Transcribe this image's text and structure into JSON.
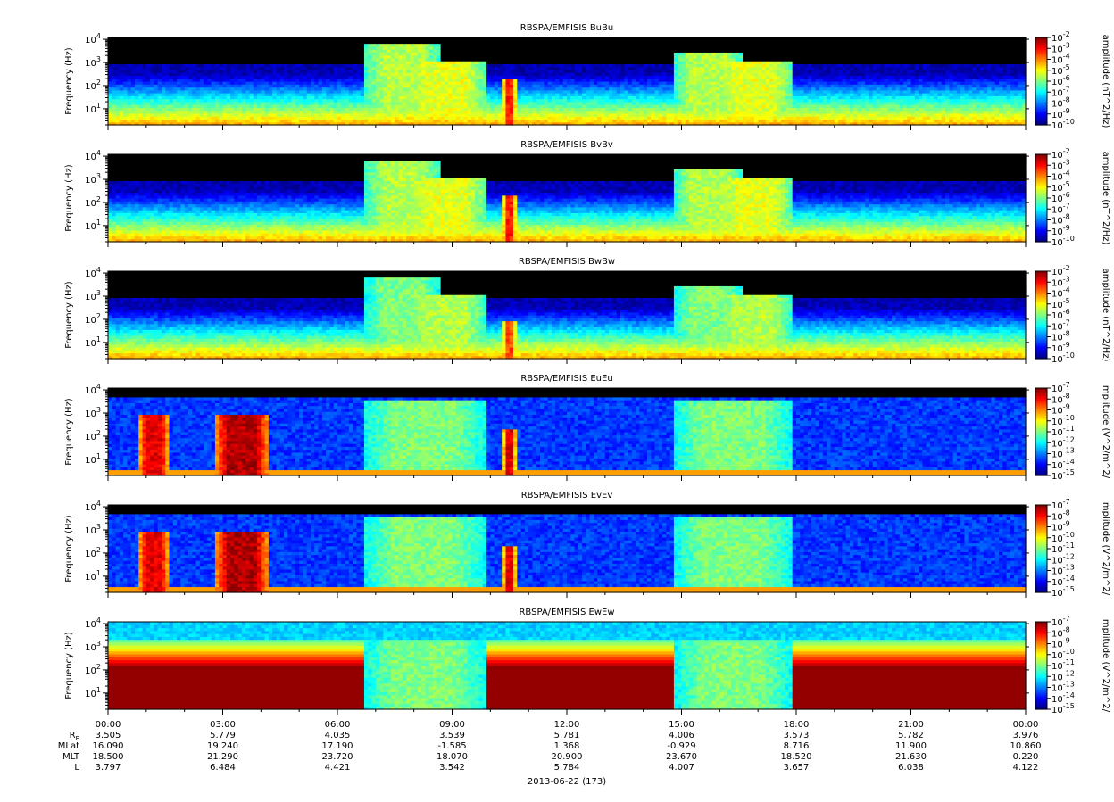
{
  "chart_data": [
    {
      "type": "heatmap",
      "title": "RBSPA/EMFISIS  BuBu",
      "ylabel": "Frequency (Hz)",
      "yscale": "log",
      "ylim": [
        2,
        12000
      ],
      "y_ticks": [
        "10^1",
        "10^2",
        "10^3",
        "10^4"
      ],
      "colorbar_label": "amplitude (nT^2/Hz)",
      "colorbar_scale": "log",
      "colorbar_range": [
        -10,
        -2
      ],
      "colorbar_ticks": [
        "10^-2",
        "10^-3",
        "10^-4",
        "10^-5",
        "10^-6",
        "10^-7",
        "10^-8",
        "10^-9",
        "10^-10"
      ],
      "profile": "b",
      "events": [
        {
          "start": 6.7,
          "end": 8.7,
          "fmax": 3.8,
          "level": 0.55
        },
        {
          "start": 7.8,
          "end": 9.9,
          "fmax": 3.1,
          "level": 0.6
        },
        {
          "start": 14.8,
          "end": 16.6,
          "fmax": 3.5,
          "level": 0.55
        },
        {
          "start": 15.9,
          "end": 17.9,
          "fmax": 3.1,
          "level": 0.6
        },
        {
          "start": 10.35,
          "end": 10.65,
          "fmax": 2.3,
          "level": 0.85
        }
      ]
    },
    {
      "type": "heatmap",
      "title": "RBSPA/EMFISIS  BvBv",
      "ylabel": "Frequency (Hz)",
      "yscale": "log",
      "ylim": [
        2,
        12000
      ],
      "y_ticks": [
        "10^1",
        "10^2",
        "10^3",
        "10^4"
      ],
      "colorbar_label": "amplitude (nT^2/Hz)",
      "colorbar_scale": "log",
      "colorbar_range": [
        -10,
        -2
      ],
      "colorbar_ticks": [
        "10^-2",
        "10^-3",
        "10^-4",
        "10^-5",
        "10^-6",
        "10^-7",
        "10^-8",
        "10^-9",
        "10^-10"
      ],
      "profile": "b",
      "events": [
        {
          "start": 6.7,
          "end": 8.7,
          "fmax": 3.8,
          "level": 0.55
        },
        {
          "start": 7.8,
          "end": 9.9,
          "fmax": 3.1,
          "level": 0.6
        },
        {
          "start": 14.8,
          "end": 16.6,
          "fmax": 3.5,
          "level": 0.55
        },
        {
          "start": 15.9,
          "end": 17.9,
          "fmax": 3.1,
          "level": 0.6
        },
        {
          "start": 10.35,
          "end": 10.65,
          "fmax": 2.3,
          "level": 0.85
        }
      ]
    },
    {
      "type": "heatmap",
      "title": "RBSPA/EMFISIS  BwBw",
      "ylabel": "Frequency (Hz)",
      "yscale": "log",
      "ylim": [
        2,
        12000
      ],
      "y_ticks": [
        "10^1",
        "10^2",
        "10^3",
        "10^4"
      ],
      "colorbar_label": "amplitude (nT^2/Hz)",
      "colorbar_scale": "log",
      "colorbar_range": [
        -10,
        -2
      ],
      "colorbar_ticks": [
        "10^-2",
        "10^-3",
        "10^-4",
        "10^-5",
        "10^-6",
        "10^-7",
        "10^-8",
        "10^-9",
        "10^-10"
      ],
      "profile": "b",
      "events": [
        {
          "start": 6.7,
          "end": 8.7,
          "fmax": 3.8,
          "level": 0.5
        },
        {
          "start": 7.8,
          "end": 9.9,
          "fmax": 3.1,
          "level": 0.55
        },
        {
          "start": 14.8,
          "end": 16.6,
          "fmax": 3.5,
          "level": 0.5
        },
        {
          "start": 15.9,
          "end": 17.9,
          "fmax": 3.1,
          "level": 0.55
        },
        {
          "start": 10.35,
          "end": 10.65,
          "fmax": 2.0,
          "level": 0.8
        }
      ]
    },
    {
      "type": "heatmap",
      "title": "RBSPA/EMFISIS  EuEu",
      "ylabel": "Frequency (Hz)",
      "yscale": "log",
      "ylim": [
        2,
        12000
      ],
      "y_ticks": [
        "10^1",
        "10^2",
        "10^3",
        "10^4"
      ],
      "colorbar_label": "mplitude (V^2/m^2/",
      "colorbar_scale": "log",
      "colorbar_range": [
        -15,
        -7
      ],
      "colorbar_ticks": [
        "10^-7",
        "10^-8",
        "10^-9",
        "10^-10",
        "10^-11",
        "10^-12",
        "10^-13",
        "10^-14",
        "10^-15"
      ],
      "profile": "e",
      "events": [
        {
          "start": 0.8,
          "end": 1.6,
          "fmax": 3.0,
          "level": 0.9
        },
        {
          "start": 2.8,
          "end": 4.2,
          "fmax": 3.0,
          "level": 0.95
        },
        {
          "start": 6.7,
          "end": 9.9,
          "fmax": 3.6,
          "level": 0.5
        },
        {
          "start": 14.8,
          "end": 17.9,
          "fmax": 3.6,
          "level": 0.5
        },
        {
          "start": 10.35,
          "end": 10.65,
          "fmax": 2.3,
          "level": 0.9
        }
      ]
    },
    {
      "type": "heatmap",
      "title": "RBSPA/EMFISIS  EvEv",
      "ylabel": "Frequency (Hz)",
      "yscale": "log",
      "ylim": [
        2,
        12000
      ],
      "y_ticks": [
        "10^1",
        "10^2",
        "10^3",
        "10^4"
      ],
      "colorbar_label": "mplitude (V^2/m^2/",
      "colorbar_scale": "log",
      "colorbar_range": [
        -15,
        -7
      ],
      "colorbar_ticks": [
        "10^-7",
        "10^-8",
        "10^-9",
        "10^-10",
        "10^-11",
        "10^-12",
        "10^-13",
        "10^-14",
        "10^-15"
      ],
      "profile": "e",
      "events": [
        {
          "start": 0.8,
          "end": 1.6,
          "fmax": 3.0,
          "level": 0.9
        },
        {
          "start": 2.8,
          "end": 4.2,
          "fmax": 3.0,
          "level": 0.95
        },
        {
          "start": 6.7,
          "end": 9.9,
          "fmax": 3.6,
          "level": 0.5
        },
        {
          "start": 14.8,
          "end": 17.9,
          "fmax": 3.6,
          "level": 0.5
        },
        {
          "start": 10.35,
          "end": 10.65,
          "fmax": 2.3,
          "level": 0.9
        }
      ]
    },
    {
      "type": "heatmap",
      "title": "RBSPA/EMFISIS  EwEw",
      "ylabel": "Frequency (Hz)",
      "yscale": "log",
      "ylim": [
        2,
        12000
      ],
      "y_ticks": [
        "10^1",
        "10^2",
        "10^3",
        "10^4"
      ],
      "colorbar_label": "mplitude (V^2/m^2/",
      "colorbar_scale": "log",
      "colorbar_range": [
        -15,
        -7
      ],
      "colorbar_ticks": [
        "10^-7",
        "10^-8",
        "10^-9",
        "10^-10",
        "10^-11",
        "10^-12",
        "10^-13",
        "10^-14",
        "10^-15"
      ],
      "profile": "ew",
      "events": [
        {
          "start": 6.7,
          "end": 9.9,
          "fmax": 3.5,
          "level": 0.5
        },
        {
          "start": 14.8,
          "end": 17.9,
          "fmax": 3.5,
          "level": 0.5
        }
      ]
    }
  ],
  "x_axis": {
    "range_hours": [
      0,
      24
    ],
    "tick_labels": [
      "00:00",
      "03:00",
      "06:00",
      "09:00",
      "12:00",
      "15:00",
      "18:00",
      "21:00",
      "00:00"
    ],
    "date_label": "2013-06-22 (173)"
  },
  "ephemeris": {
    "rows": [
      {
        "label": "R",
        "label_sub": "E",
        "values": [
          "3.505",
          "5.779",
          "4.035",
          "3.539",
          "5.781",
          "4.006",
          "3.573",
          "5.782",
          "3.976"
        ]
      },
      {
        "label": "MLat",
        "label_sub": "",
        "values": [
          "16.090",
          "19.240",
          "17.190",
          "-1.585",
          "1.368",
          "-0.929",
          "8.716",
          "11.900",
          "10.860"
        ]
      },
      {
        "label": "MLT",
        "label_sub": "",
        "values": [
          "18.500",
          "21.290",
          "23.720",
          "18.070",
          "20.900",
          "23.670",
          "18.520",
          "21.630",
          "0.220"
        ]
      },
      {
        "label": "L",
        "label_sub": "",
        "values": [
          "3.797",
          "6.484",
          "4.421",
          "3.542",
          "5.784",
          "4.007",
          "3.657",
          "6.038",
          "4.122"
        ]
      }
    ]
  }
}
